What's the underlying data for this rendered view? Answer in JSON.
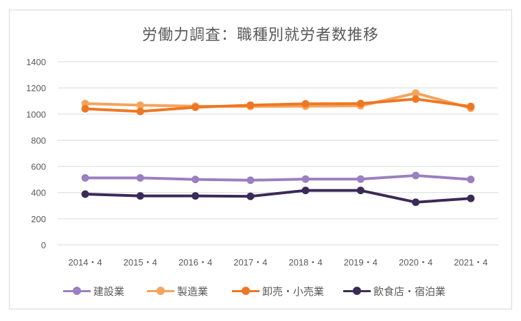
{
  "chart_data": {
    "type": "line",
    "title": "労働力調査：職種別就労者数推移",
    "xlabel": "",
    "ylabel": "",
    "categories": [
      "2014・4",
      "2015・4",
      "2016・4",
      "2017・4",
      "2018・4",
      "2019・4",
      "2020・4",
      "2021・4"
    ],
    "ylim": [
      0,
      1400
    ],
    "yticks": [
      0,
      200,
      400,
      600,
      800,
      1000,
      1200,
      1400
    ],
    "grid": true,
    "legend_position": "bottom",
    "series": [
      {
        "name": "建設業",
        "color": "#9b7fc0",
        "values": [
          512,
          512,
          500,
          494,
          503,
          503,
          530,
          500
        ]
      },
      {
        "name": "製造業",
        "color": "#f6a35c",
        "values": [
          1080,
          1068,
          1060,
          1058,
          1060,
          1063,
          1160,
          1045
        ]
      },
      {
        "name": "卸売・小売業",
        "color": "#ee7722",
        "values": [
          1040,
          1020,
          1052,
          1068,
          1078,
          1080,
          1115,
          1058
        ]
      },
      {
        "name": "飲食店・宿泊業",
        "color": "#3b2a56",
        "values": [
          388,
          374,
          374,
          371,
          416,
          416,
          326,
          355
        ]
      }
    ]
  }
}
